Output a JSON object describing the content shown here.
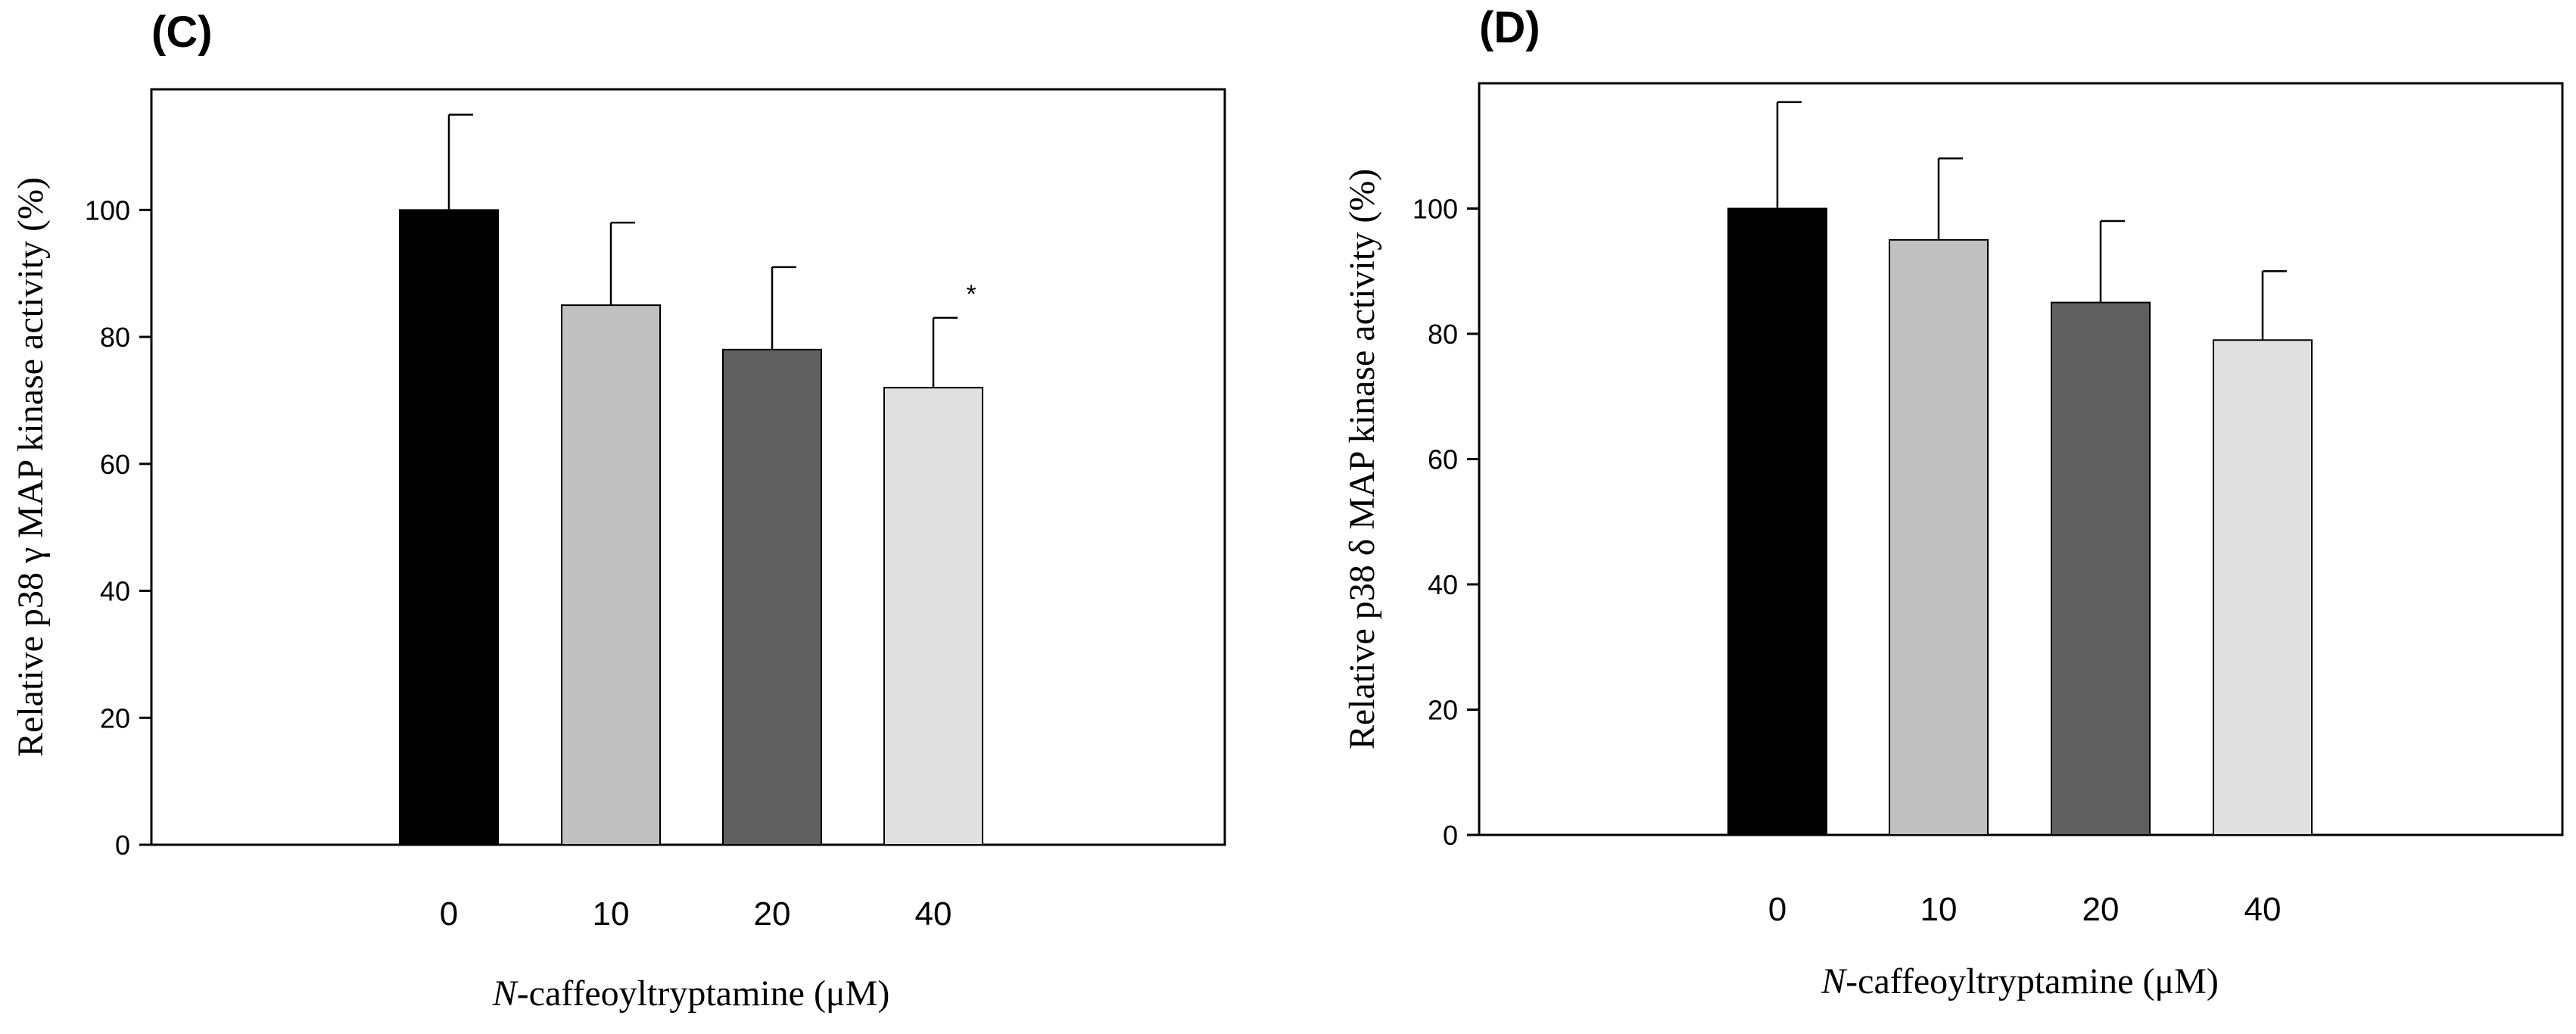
{
  "chart_data": [
    {
      "type": "bar",
      "panel": "(C)",
      "categories": [
        "0",
        "10",
        "20",
        "40"
      ],
      "values": [
        100,
        85,
        78,
        72
      ],
      "errors": [
        15,
        13,
        13,
        11
      ],
      "colors": [
        "#000000",
        "#c0c0c0",
        "#606060",
        "#e0e0e0"
      ],
      "annotations": [
        "",
        "",
        "",
        "*"
      ],
      "ylabel": "Relative p38 γ MAP kinase activity (%)",
      "xlabel_italic": "N",
      "xlabel_rest": "-caffeoyltryptamine (μM)",
      "ylim": [
        0,
        119
      ],
      "yticks": [
        0,
        20,
        40,
        60,
        80,
        100
      ]
    },
    {
      "type": "bar",
      "panel": "(D)",
      "categories": [
        "0",
        "10",
        "20",
        "40"
      ],
      "values": [
        100,
        95,
        85,
        79
      ],
      "errors": [
        17,
        13,
        13,
        11
      ],
      "colors": [
        "#000000",
        "#c0c0c0",
        "#606060",
        "#e0e0e0"
      ],
      "annotations": [
        "",
        "",
        "",
        ""
      ],
      "ylabel": "Relative p38 δ MAP kinase activity (%)",
      "xlabel_italic": "N",
      "xlabel_rest": "-caffeoyltryptamine (μM)",
      "ylim": [
        0,
        120
      ],
      "yticks": [
        0,
        20,
        40,
        60,
        80,
        100
      ]
    }
  ]
}
